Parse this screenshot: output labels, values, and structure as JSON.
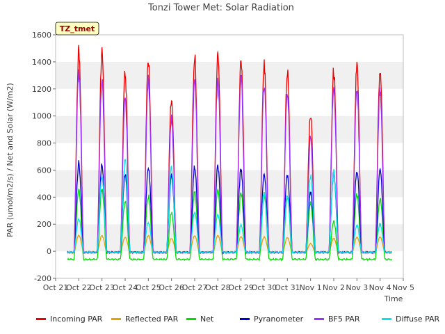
{
  "chart_data": {
    "type": "line",
    "title": "Tonzi Tower Met: Solar Radiation",
    "badge": "TZ_tmet",
    "xlabel": "Time",
    "ylabel": "PAR (umol/m2/s) / Net and Solar (W/m2)",
    "ylim": [
      -200,
      1600
    ],
    "yticks": [
      -200,
      0,
      200,
      400,
      600,
      800,
      1000,
      1200,
      1400,
      1600
    ],
    "xlim": [
      0,
      15
    ],
    "x_tick_labels": [
      "Oct 21",
      "Oct 22",
      "Oct 23",
      "Oct 24",
      "Oct 25",
      "Oct 26",
      "Oct 27",
      "Oct 28",
      "Oct 29",
      "Oct 30",
      "Oct 31",
      "Nov 1",
      "Nov 2",
      "Nov 3",
      "Nov 4",
      "Nov 5"
    ],
    "grid": "horizontal bands",
    "legend_position": "bottom",
    "day_start_index": 0.5,
    "series": [
      {
        "name": "Incoming PAR",
        "color": "#ee0000",
        "daily_peaks": [
          1545,
          1530,
          1360,
          1490,
          1165,
          1485,
          1490,
          1470,
          1420,
          1370,
          1040,
          1385,
          1415,
          1410
        ]
      },
      {
        "name": "Reflected PAR",
        "color": "#e8a000",
        "daily_peaks": [
          125,
          120,
          110,
          120,
          100,
          120,
          120,
          115,
          110,
          105,
          60,
          100,
          110,
          110
        ]
      },
      {
        "name": "Net",
        "color": "#00dd00",
        "daily_peaks": [
          480,
          480,
          380,
          430,
          300,
          450,
          460,
          455,
          440,
          420,
          370,
          240,
          440,
          410
        ],
        "night_value": -60
      },
      {
        "name": "Pyranometer",
        "color": "#0000cc",
        "daily_peaks": [
          675,
          660,
          600,
          650,
          600,
          650,
          650,
          630,
          600,
          590,
          450,
          600,
          620,
          615
        ]
      },
      {
        "name": "BF5 PAR",
        "color": "#9b30ff",
        "daily_peaks": [
          1365,
          1320,
          1200,
          1335,
          1030,
          1300,
          1330,
          1320,
          1280,
          1230,
          870,
          1270,
          1250,
          1240
        ]
      },
      {
        "name": "Diffuse PAR",
        "color": "#00e5ee",
        "daily_peaks": [
          250,
          560,
          700,
          220,
          650,
          300,
          280,
          200,
          450,
          430,
          590,
          610,
          200,
          210
        ]
      }
    ]
  }
}
